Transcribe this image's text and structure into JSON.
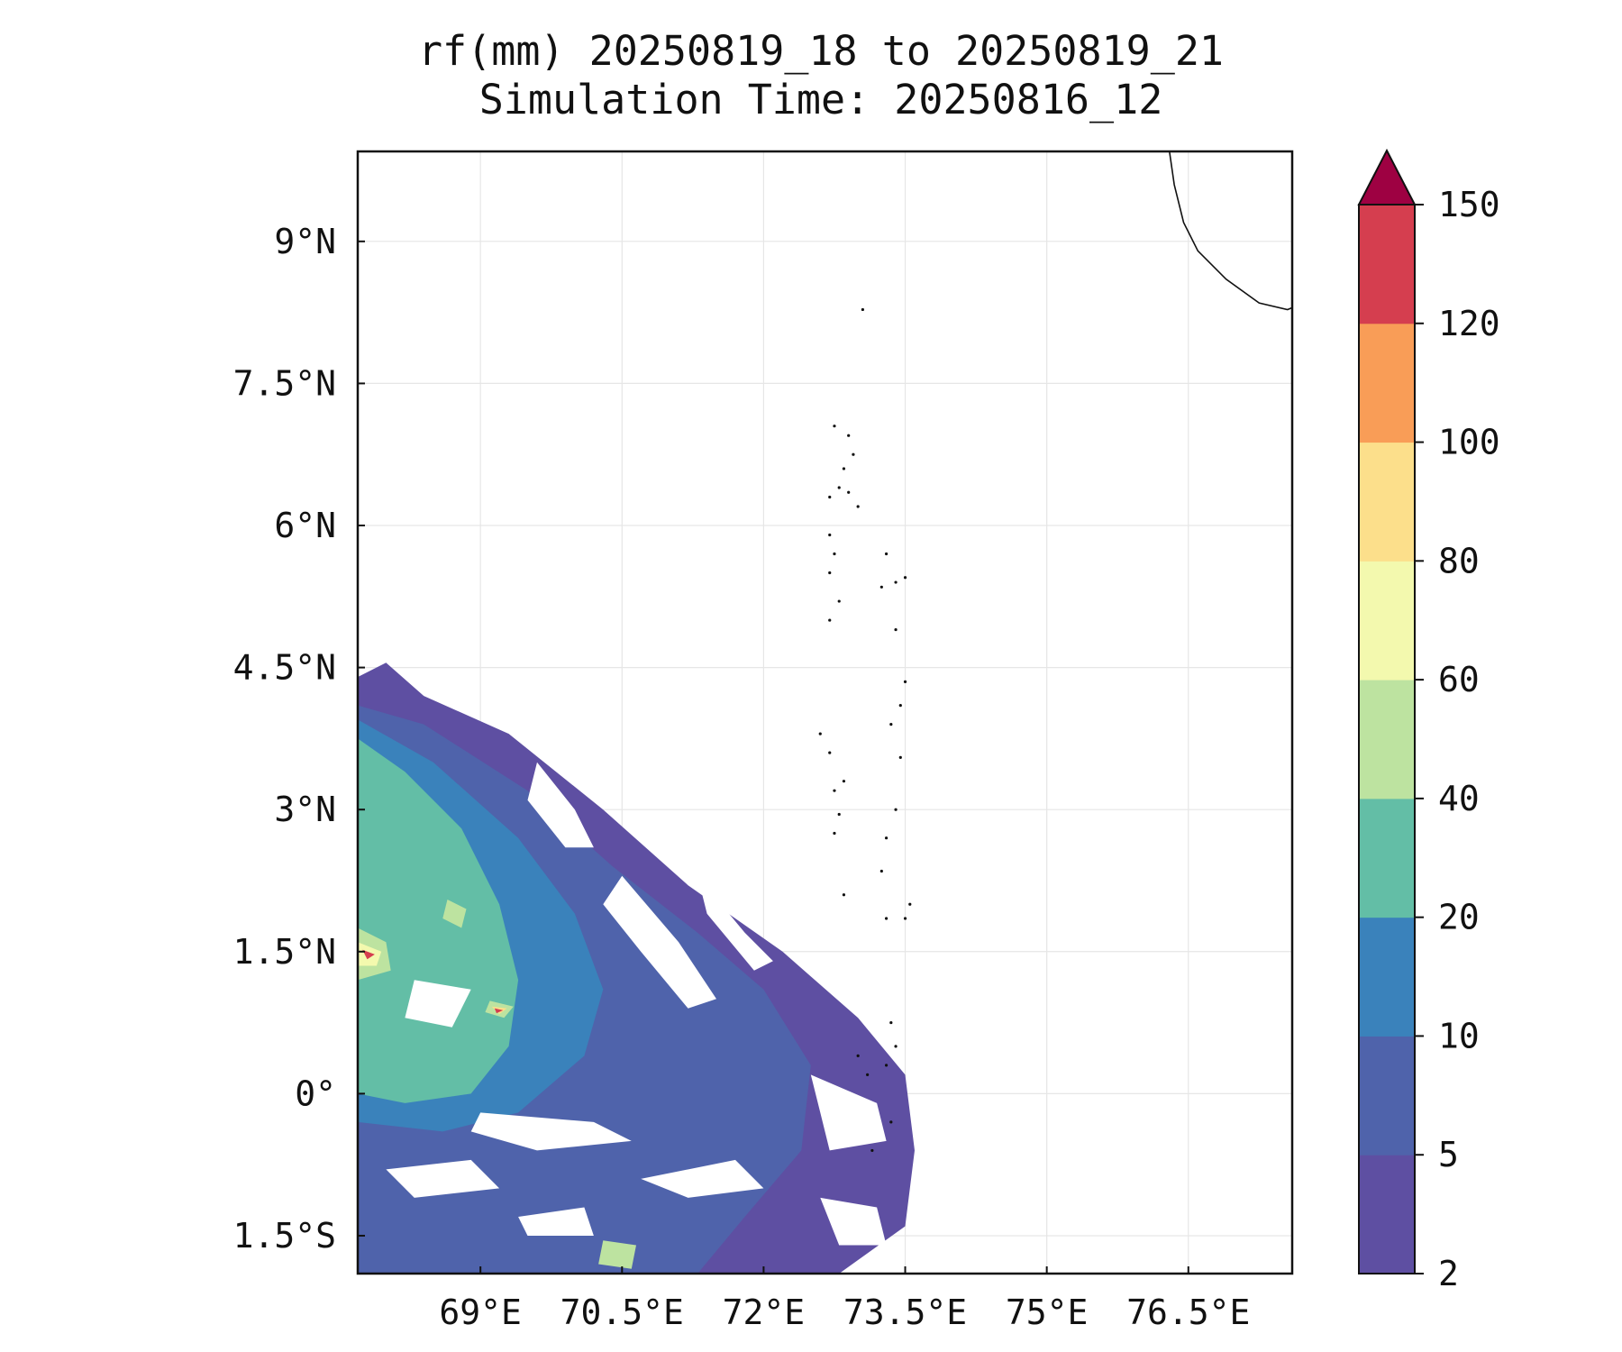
{
  "title": {
    "line1": "rf(mm) 20250819_18 to 20250819_21",
    "line2": "Simulation Time: 20250816_12"
  },
  "chart_data": {
    "type": "heatmap",
    "variable": "rf(mm)",
    "xlim": [
      67.7,
      77.6
    ],
    "ylim": [
      -1.9,
      9.95
    ],
    "x_ticks": [
      69,
      70.5,
      72,
      73.5,
      75,
      76.5
    ],
    "x_tick_labels": [
      "69°E",
      "70.5°E",
      "72°E",
      "73.5°E",
      "75°E",
      "76.5°E"
    ],
    "y_ticks": [
      -1.5,
      0,
      1.5,
      3,
      4.5,
      6,
      7.5,
      9
    ],
    "y_tick_labels": [
      "1.5°S",
      "0°",
      "1.5°N",
      "3°N",
      "4.5°N",
      "6°N",
      "7.5°N",
      "9°N"
    ],
    "grid": true,
    "colorbar": {
      "levels": [
        2,
        5,
        10,
        20,
        40,
        60,
        80,
        100,
        120,
        150
      ],
      "tick_labels": [
        "2",
        "5",
        "10",
        "20",
        "40",
        "60",
        "80",
        "100",
        "120",
        "150"
      ],
      "colors": [
        "#5e4fa2",
        "#4f63ab",
        "#3a82bb",
        "#63bea6",
        "#bde3a0",
        "#f3f9ae",
        "#fcdf8b",
        "#f99d57",
        "#d53e4f"
      ],
      "extend_color": "#9e0142",
      "extend": "max"
    },
    "rain_regions": [
      {
        "level": 2,
        "points": [
          [
            67.7,
            4.4
          ],
          [
            68.0,
            4.55
          ],
          [
            68.4,
            4.2
          ],
          [
            69.3,
            3.8
          ],
          [
            70.3,
            3.0
          ],
          [
            71.2,
            2.2
          ],
          [
            72.2,
            1.5
          ],
          [
            73.0,
            0.8
          ],
          [
            73.5,
            0.2
          ],
          [
            73.6,
            -0.6
          ],
          [
            73.5,
            -1.4
          ],
          [
            72.8,
            -1.9
          ],
          [
            67.7,
            -1.9
          ]
        ]
      },
      {
        "level": 5,
        "points": [
          [
            67.7,
            4.1
          ],
          [
            68.4,
            3.9
          ],
          [
            69.5,
            3.2
          ],
          [
            70.4,
            2.4
          ],
          [
            71.3,
            1.7
          ],
          [
            72.0,
            1.1
          ],
          [
            72.5,
            0.3
          ],
          [
            72.4,
            -0.6
          ],
          [
            71.8,
            -1.3
          ],
          [
            71.3,
            -1.9
          ],
          [
            67.7,
            -1.9
          ]
        ]
      },
      {
        "level": 10,
        "points": [
          [
            67.7,
            3.95
          ],
          [
            68.5,
            3.5
          ],
          [
            69.4,
            2.7
          ],
          [
            70.0,
            1.9
          ],
          [
            70.3,
            1.1
          ],
          [
            70.1,
            0.4
          ],
          [
            69.4,
            -0.2
          ],
          [
            68.6,
            -0.4
          ],
          [
            67.7,
            -0.3
          ]
        ]
      },
      {
        "level": 20,
        "points": [
          [
            67.7,
            3.75
          ],
          [
            68.2,
            3.4
          ],
          [
            68.8,
            2.8
          ],
          [
            69.2,
            2.0
          ],
          [
            69.4,
            1.2
          ],
          [
            69.3,
            0.5
          ],
          [
            68.9,
            0.0
          ],
          [
            68.2,
            -0.1
          ],
          [
            67.7,
            0.0
          ]
        ]
      },
      {
        "level": 40,
        "points": [
          [
            68.65,
            2.05
          ],
          [
            68.85,
            1.95
          ],
          [
            68.8,
            1.75
          ],
          [
            68.6,
            1.85
          ]
        ]
      },
      {
        "level": 40,
        "points": [
          [
            69.1,
            0.98
          ],
          [
            69.35,
            0.92
          ],
          [
            69.25,
            0.8
          ],
          [
            69.05,
            0.86
          ]
        ]
      },
      {
        "level": 40,
        "points": [
          [
            67.7,
            1.75
          ],
          [
            68.0,
            1.6
          ],
          [
            68.05,
            1.3
          ],
          [
            67.7,
            1.2
          ]
        ]
      },
      {
        "level": 40,
        "points": [
          [
            70.3,
            -1.55
          ],
          [
            70.65,
            -1.6
          ],
          [
            70.6,
            -1.85
          ],
          [
            70.25,
            -1.8
          ]
        ]
      },
      {
        "level": 60,
        "points": [
          [
            67.7,
            1.6
          ],
          [
            67.95,
            1.5
          ],
          [
            67.9,
            1.35
          ],
          [
            67.7,
            1.35
          ]
        ]
      },
      {
        "level": 80,
        "points": [
          [
            69.12,
            0.92
          ],
          [
            69.28,
            0.9
          ],
          [
            69.2,
            0.84
          ]
        ]
      },
      {
        "level": 120,
        "points": [
          [
            67.75,
            1.52
          ],
          [
            67.88,
            1.47
          ],
          [
            67.8,
            1.42
          ]
        ]
      },
      {
        "level": 120,
        "points": [
          [
            69.15,
            0.9
          ],
          [
            69.24,
            0.88
          ],
          [
            69.17,
            0.85
          ]
        ]
      }
    ],
    "dry_gaps": [
      [
        [
          70.5,
          2.3
        ],
        [
          71.1,
          1.6
        ],
        [
          71.5,
          1.0
        ],
        [
          71.2,
          0.9
        ],
        [
          70.7,
          1.5
        ],
        [
          70.3,
          2.0
        ]
      ],
      [
        [
          71.3,
          2.3
        ],
        [
          71.8,
          1.7
        ],
        [
          72.1,
          1.4
        ],
        [
          71.9,
          1.3
        ],
        [
          71.4,
          1.9
        ]
      ],
      [
        [
          69.6,
          3.5
        ],
        [
          70.0,
          3.0
        ],
        [
          70.2,
          2.6
        ],
        [
          69.9,
          2.6
        ],
        [
          69.5,
          3.1
        ]
      ],
      [
        [
          68.3,
          1.2
        ],
        [
          68.9,
          1.1
        ],
        [
          68.7,
          0.7
        ],
        [
          68.2,
          0.8
        ]
      ],
      [
        [
          69.0,
          -0.2
        ],
        [
          70.2,
          -0.3
        ],
        [
          70.6,
          -0.5
        ],
        [
          69.6,
          -0.6
        ],
        [
          68.9,
          -0.4
        ]
      ],
      [
        [
          70.7,
          -0.9
        ],
        [
          71.7,
          -0.7
        ],
        [
          72.0,
          -1.0
        ],
        [
          71.2,
          -1.1
        ]
      ],
      [
        [
          68.0,
          -0.8
        ],
        [
          68.9,
          -0.7
        ],
        [
          69.2,
          -1.0
        ],
        [
          68.3,
          -1.1
        ]
      ],
      [
        [
          69.4,
          -1.3
        ],
        [
          70.1,
          -1.2
        ],
        [
          70.2,
          -1.5
        ],
        [
          69.5,
          -1.5
        ]
      ],
      [
        [
          72.5,
          0.2
        ],
        [
          73.2,
          -0.1
        ],
        [
          73.3,
          -0.5
        ],
        [
          72.7,
          -0.6
        ],
        [
          72.6,
          -0.2
        ]
      ],
      [
        [
          72.6,
          -1.1
        ],
        [
          73.2,
          -1.2
        ],
        [
          73.3,
          -1.6
        ],
        [
          72.8,
          -1.6
        ]
      ]
    ],
    "coastline": [
      [
        76.3,
        9.95
      ],
      [
        76.35,
        9.6
      ],
      [
        76.45,
        9.2
      ],
      [
        76.6,
        8.9
      ],
      [
        76.9,
        8.6
      ],
      [
        77.25,
        8.35
      ],
      [
        77.55,
        8.28
      ],
      [
        77.6,
        8.3
      ]
    ],
    "islands": [
      [
        73.05,
        8.28
      ],
      [
        72.75,
        7.05
      ],
      [
        72.9,
        6.95
      ],
      [
        72.95,
        6.75
      ],
      [
        72.85,
        6.6
      ],
      [
        72.8,
        6.4
      ],
      [
        72.9,
        6.35
      ],
      [
        73.0,
        6.2
      ],
      [
        72.7,
        6.3
      ],
      [
        72.7,
        5.9
      ],
      [
        72.75,
        5.7
      ],
      [
        72.7,
        5.5
      ],
      [
        73.3,
        5.7
      ],
      [
        73.4,
        5.4
      ],
      [
        73.5,
        5.45
      ],
      [
        73.25,
        5.35
      ],
      [
        72.8,
        5.2
      ],
      [
        72.7,
        5.0
      ],
      [
        73.4,
        4.9
      ],
      [
        73.5,
        4.35
      ],
      [
        73.45,
        4.1
      ],
      [
        73.35,
        3.9
      ],
      [
        72.6,
        3.8
      ],
      [
        72.7,
        3.6
      ],
      [
        72.85,
        3.3
      ],
      [
        73.45,
        3.55
      ],
      [
        72.75,
        3.2
      ],
      [
        72.8,
        2.95
      ],
      [
        73.4,
        3.0
      ],
      [
        73.3,
        2.7
      ],
      [
        72.75,
        2.75
      ],
      [
        73.25,
        2.35
      ],
      [
        72.85,
        2.1
      ],
      [
        73.55,
        2.0
      ],
      [
        73.3,
        1.85
      ],
      [
        73.5,
        1.85
      ],
      [
        73.35,
        0.75
      ],
      [
        73.4,
        0.5
      ],
      [
        73.0,
        0.4
      ],
      [
        73.1,
        0.2
      ],
      [
        73.3,
        0.3
      ],
      [
        73.35,
        -0.3
      ],
      [
        73.15,
        -0.6
      ]
    ]
  }
}
